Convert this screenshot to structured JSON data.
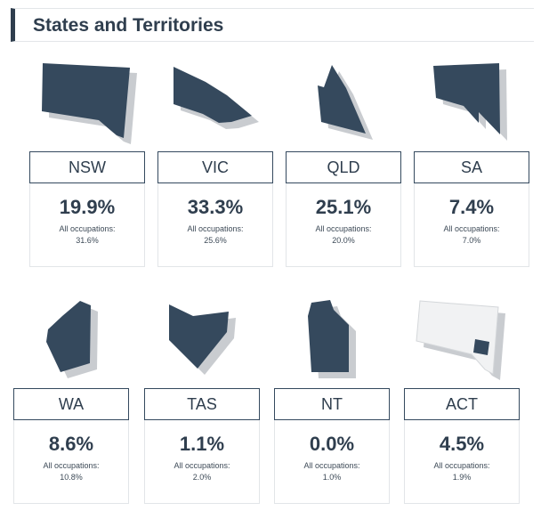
{
  "section": {
    "title": "States and Territories"
  },
  "states": [
    {
      "code": "NSW",
      "pct": "19.9%",
      "all_label": "All occupations:",
      "all_value": "31.6%",
      "icon": "nsw-map-icon"
    },
    {
      "code": "VIC",
      "pct": "33.3%",
      "all_label": "All occupations:",
      "all_value": "25.6%",
      "icon": "vic-map-icon"
    },
    {
      "code": "QLD",
      "pct": "25.1%",
      "all_label": "All occupations:",
      "all_value": "20.0%",
      "icon": "qld-map-icon"
    },
    {
      "code": "SA",
      "pct": "7.4%",
      "all_label": "All occupations:",
      "all_value": "7.0%",
      "icon": "sa-map-icon"
    },
    {
      "code": "WA",
      "pct": "8.6%",
      "all_label": "All occupations:",
      "all_value": "10.8%",
      "icon": "wa-map-icon"
    },
    {
      "code": "TAS",
      "pct": "1.1%",
      "all_label": "All occupations:",
      "all_value": "2.0%",
      "icon": "tas-map-icon"
    },
    {
      "code": "NT",
      "pct": "0.0%",
      "all_label": "All occupations:",
      "all_value": "1.0%",
      "icon": "nt-map-icon"
    },
    {
      "code": "ACT",
      "pct": "4.5%",
      "all_label": "All occupations:",
      "all_value": "1.9%",
      "icon": "act-map-icon"
    }
  ],
  "colors": {
    "shape_fill": "#35495d",
    "shadow": "#c9ccd0",
    "act_region_fill": "#f1f2f3"
  }
}
